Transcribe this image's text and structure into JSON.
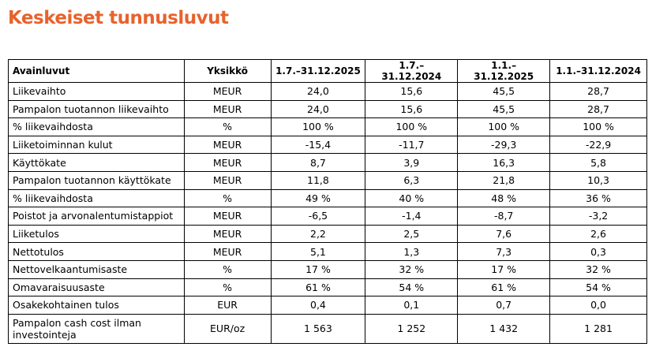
{
  "title": "Keskeiset tunnusluvut",
  "table": {
    "header": [
      "Avainluvut",
      "Yksikkö",
      "1.7.–31.12.2025",
      "1.7.–31.12.2024",
      "1.1.–31.12.2025",
      "1.1.–31.12.2024"
    ],
    "rows": [
      [
        "Liikevaihto",
        "MEUR",
        "24,0",
        "15,6",
        "45,5",
        "28,7"
      ],
      [
        "Pampalon tuotannon liikevaihto",
        "MEUR",
        "24,0",
        "15,6",
        "45,5",
        "28,7"
      ],
      [
        "% liikevaihdosta",
        "%",
        "100 %",
        "100 %",
        "100 %",
        "100 %"
      ],
      [
        "Liiketoiminnan kulut",
        "MEUR",
        "-15,4",
        "-11,7",
        "-29,3",
        "-22,9"
      ],
      [
        "Käyttökate",
        "MEUR",
        "8,7",
        "3,9",
        "16,3",
        "5,8"
      ],
      [
        "Pampalon tuotannon käyttökate",
        "MEUR",
        "11,8",
        "6,3",
        "21,8",
        "10,3"
      ],
      [
        "% liikevaihdosta",
        "%",
        "49 %",
        "40 %",
        "48 %",
        "36 %"
      ],
      [
        "Poistot ja arvonalentumistappiot",
        "MEUR",
        "-6,5",
        "-1,4",
        "-8,7",
        "-3,2"
      ],
      [
        "Liiketulos",
        "MEUR",
        "2,2",
        "2,5",
        "7,6",
        "2,6"
      ],
      [
        "Nettotulos",
        "MEUR",
        "5,1",
        "1,3",
        "7,3",
        "0,3"
      ],
      [
        "Nettovelkaantumisaste",
        "%",
        "17 %",
        "32 %",
        "17 %",
        "32 %"
      ],
      [
        "Omavaraisuusaste",
        "%",
        "61 %",
        "54 %",
        "61 %",
        "54 %"
      ],
      [
        "Osakekohtainen tulos",
        "EUR",
        "0,4",
        "0,1",
        "0,7",
        "0,0"
      ],
      [
        "Pampalon cash cost ilman investointeja",
        "EUR/oz",
        "1 563",
        "1 252",
        "1 432",
        "1 281"
      ]
    ]
  }
}
